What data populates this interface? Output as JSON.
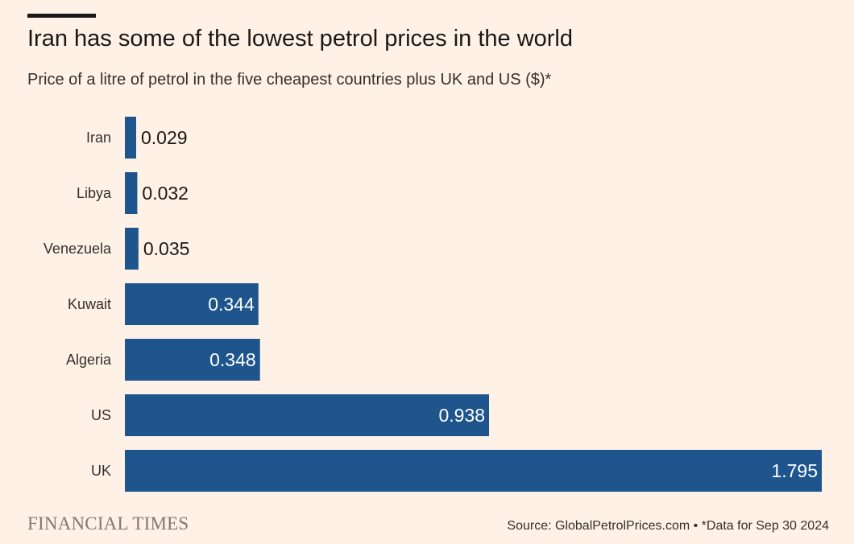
{
  "title": "Iran has some of the lowest petrol prices in the world",
  "subtitle": "Price of a litre of petrol in the five cheapest countries plus UK and US ($)*",
  "brand": "FINANCIAL TIMES",
  "source": "Source: GlobalPetrolPrices.com • *Data for Sep 30 2024",
  "colors": {
    "background": "#FFF1E5",
    "bar": "#1E558C"
  },
  "chart_data": {
    "type": "bar",
    "orientation": "horizontal",
    "title": "Iran has some of the lowest petrol prices in the world",
    "ylabel": "",
    "xlabel": "",
    "xlim": [
      0,
      1.795
    ],
    "categories": [
      "Iran",
      "Libya",
      "Venezuela",
      "Kuwait",
      "Algeria",
      "US",
      "UK"
    ],
    "values": [
      0.029,
      0.032,
      0.035,
      0.344,
      0.348,
      0.938,
      1.795
    ],
    "value_labels": [
      "0.029",
      "0.032",
      "0.035",
      "0.344",
      "0.348",
      "0.938",
      "1.795"
    ]
  }
}
